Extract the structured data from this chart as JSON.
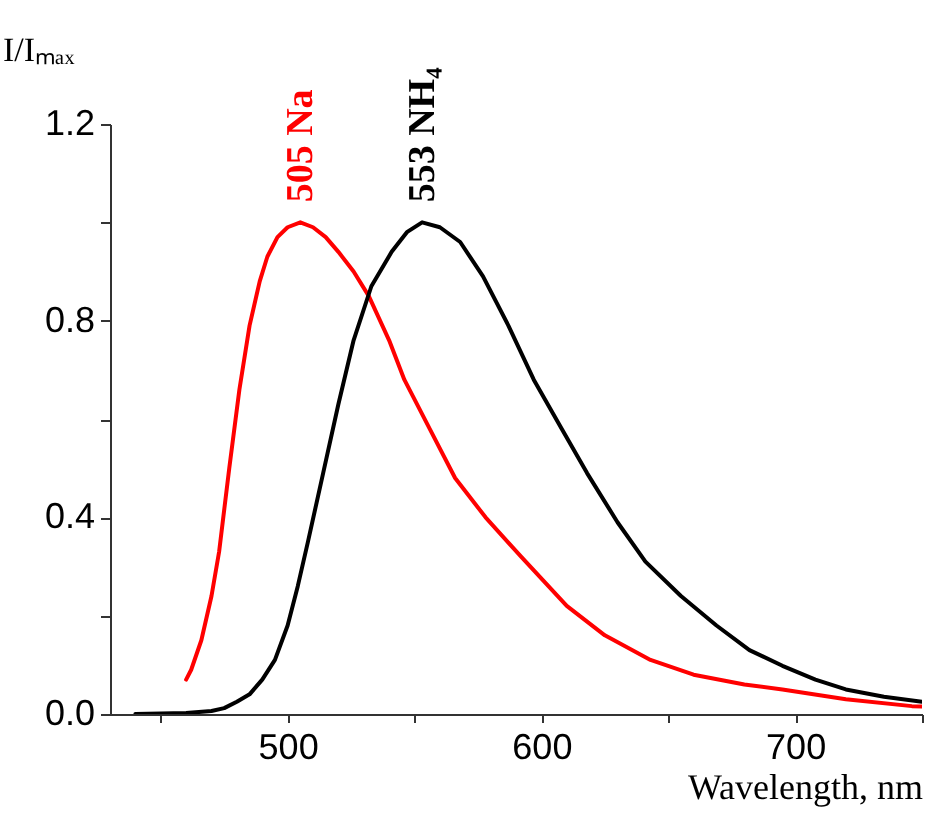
{
  "chart_data": {
    "type": "line",
    "xlabel": "Wavelength, nm",
    "ylabel": "I/Iₘₐₓ",
    "xlim": [
      430,
      750
    ],
    "xticks": [
      {
        "value": 450,
        "label": null
      },
      500,
      {
        "value": 550,
        "label": null
      },
      600,
      {
        "value": 650,
        "label": null
      },
      700,
      {
        "value": 750,
        "label": null
      }
    ],
    "ylim": [
      0,
      1.2
    ],
    "yticks": [
      {
        "value": 0,
        "label": "0.0"
      },
      {
        "value": 0.2,
        "label": null
      },
      0.4,
      {
        "value": 0.6,
        "label": null
      },
      0.8,
      {
        "value": 1.0,
        "label": null
      },
      1.2
    ],
    "grid": false,
    "legend": false,
    "marker": "none",
    "line_style": "solid",
    "series": [
      {
        "color": "#ff0000",
        "x": [
          460,
          462,
          466,
          470,
          473,
          477,
          481,
          485,
          489,
          492,
          496,
          500,
          505,
          510,
          515,
          520,
          526,
          532,
          540,
          546,
          556,
          566,
          578,
          592,
          610,
          625,
          643,
          660,
          680,
          695,
          720,
          746,
          750
        ],
        "values": [
          0.07,
          0.09,
          0.15,
          0.24,
          0.33,
          0.5,
          0.66,
          0.79,
          0.88,
          0.93,
          0.97,
          0.99,
          1.0,
          0.99,
          0.97,
          0.94,
          0.9,
          0.85,
          0.76,
          0.68,
          0.58,
          0.48,
          0.4,
          0.32,
          0.22,
          0.16,
          0.11,
          0.08,
          0.06,
          0.05,
          0.03,
          0.016,
          0.015
        ]
      },
      {
        "color": "#000000",
        "x": [
          440,
          460,
          470,
          475,
          480,
          485,
          490,
          495,
          500,
          504,
          508,
          514,
          520,
          526,
          533,
          541,
          547,
          553,
          560,
          568,
          577,
          587,
          597,
          608,
          618,
          630,
          641,
          655,
          669,
          682,
          695,
          708,
          720,
          735,
          750
        ],
        "values": [
          0.0,
          0.002,
          0.006,
          0.012,
          0.025,
          0.04,
          0.07,
          0.11,
          0.18,
          0.26,
          0.35,
          0.49,
          0.63,
          0.76,
          0.87,
          0.94,
          0.98,
          1.0,
          0.99,
          0.96,
          0.89,
          0.79,
          0.68,
          0.58,
          0.49,
          0.39,
          0.31,
          0.24,
          0.18,
          0.13,
          0.098,
          0.07,
          0.05,
          0.035,
          0.025
        ]
      }
    ],
    "annotations": [
      {
        "text": "505 Na",
        "x": 505,
        "y": 1.0
      },
      {
        "text": "553 NH₄",
        "x": 553,
        "y": 1.0
      }
    ]
  }
}
